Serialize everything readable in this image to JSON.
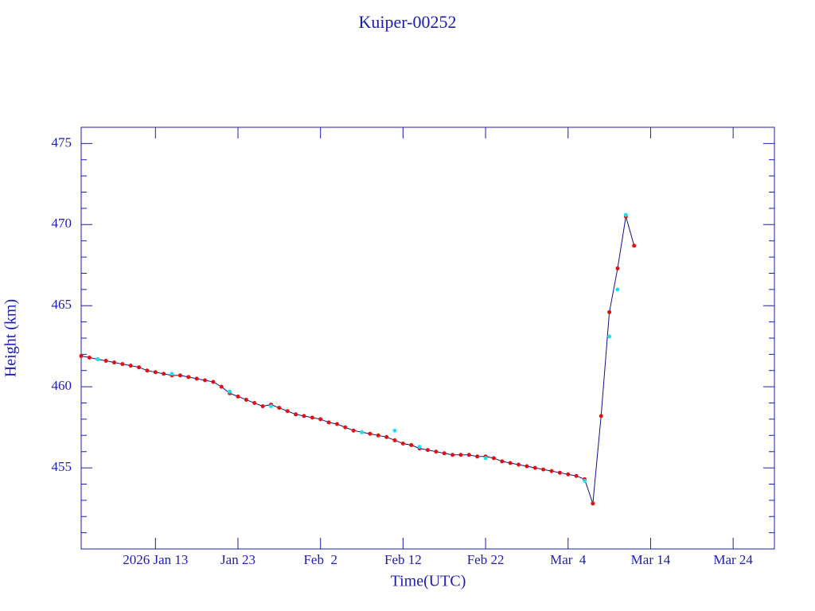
{
  "chart_data": {
    "type": "line",
    "title": "Kuiper-00252",
    "x_label": "Time(UTC)",
    "y_label": "Height (km)",
    "x": [
      "2026-01-04",
      "2026-01-05",
      "2026-01-06",
      "2026-01-07",
      "2026-01-08",
      "2026-01-09",
      "2026-01-10",
      "2026-01-11",
      "2026-01-12",
      "2026-01-13",
      "2026-01-14",
      "2026-01-15",
      "2026-01-16",
      "2026-01-17",
      "2026-01-18",
      "2026-01-19",
      "2026-01-20",
      "2026-01-21",
      "2026-01-22",
      "2026-01-23",
      "2026-01-24",
      "2026-01-25",
      "2026-01-26",
      "2026-01-27",
      "2026-01-28",
      "2026-01-29",
      "2026-01-30",
      "2026-01-31",
      "2026-02-01",
      "2026-02-02",
      "2026-02-03",
      "2026-02-04",
      "2026-02-05",
      "2026-02-06",
      "2026-02-07",
      "2026-02-08",
      "2026-02-09",
      "2026-02-10",
      "2026-02-11",
      "2026-02-12",
      "2026-02-13",
      "2026-02-14",
      "2026-02-15",
      "2026-02-16",
      "2026-02-17",
      "2026-02-18",
      "2026-02-19",
      "2026-02-20",
      "2026-02-21",
      "2026-02-22",
      "2026-02-23",
      "2026-02-24",
      "2026-02-25",
      "2026-02-26",
      "2026-02-27",
      "2026-02-28",
      "2026-03-01",
      "2026-03-02",
      "2026-03-03",
      "2026-03-04",
      "2026-03-05",
      "2026-03-06",
      "2026-03-07",
      "2026-03-08",
      "2026-03-09",
      "2026-03-10",
      "2026-03-11",
      "2026-03-12"
    ],
    "series": [
      {
        "color": "#e01010",
        "line_color": "#10108a",
        "values": [
          461.9,
          461.8,
          461.7,
          461.6,
          461.5,
          461.4,
          461.3,
          461.2,
          461.0,
          460.9,
          460.8,
          460.7,
          460.7,
          460.6,
          460.5,
          460.4,
          460.3,
          460.0,
          459.6,
          459.4,
          459.2,
          459.0,
          458.8,
          458.9,
          458.7,
          458.5,
          458.3,
          458.2,
          458.1,
          458.0,
          457.8,
          457.7,
          457.5,
          457.3,
          457.2,
          457.1,
          457.0,
          456.9,
          456.7,
          456.5,
          456.4,
          456.2,
          456.1,
          456.0,
          455.9,
          455.8,
          455.8,
          455.8,
          455.7,
          455.7,
          455.6,
          455.4,
          455.3,
          455.2,
          455.1,
          455.0,
          454.9,
          454.8,
          454.7,
          454.6,
          454.5,
          454.3,
          452.8,
          458.2,
          464.6,
          467.3,
          470.5,
          468.7
        ]
      },
      {
        "color": "#20e0f0",
        "values": [
          null,
          null,
          461.7,
          null,
          null,
          null,
          null,
          null,
          null,
          null,
          null,
          460.8,
          null,
          null,
          null,
          null,
          null,
          null,
          459.7,
          null,
          null,
          null,
          null,
          458.8,
          null,
          null,
          null,
          null,
          null,
          null,
          null,
          null,
          null,
          null,
          457.2,
          null,
          null,
          null,
          457.3,
          null,
          null,
          456.3,
          null,
          null,
          null,
          null,
          null,
          null,
          null,
          455.6,
          null,
          null,
          null,
          null,
          null,
          null,
          null,
          null,
          null,
          null,
          null,
          454.2,
          null,
          null,
          463.1,
          466.0,
          470.6,
          null
        ]
      }
    ],
    "xlim": [
      "2026-01-04",
      "2026-03-29"
    ],
    "xticks": [
      {
        "value": "2026-01-13",
        "label": "2026 Jan 13"
      },
      {
        "value": "2026-01-23",
        "label": "Jan 23"
      },
      {
        "value": "2026-02-02",
        "label": "Feb  2"
      },
      {
        "value": "2026-02-12",
        "label": "Feb 12"
      },
      {
        "value": "2026-02-22",
        "label": "Feb 22"
      },
      {
        "value": "2026-03-04",
        "label": "Mar  4"
      },
      {
        "value": "2026-03-14",
        "label": "Mar 14"
      },
      {
        "value": "2026-03-24",
        "label": "Mar 24"
      }
    ],
    "ylim": [
      450,
      476
    ],
    "yticks": [
      455,
      460,
      465,
      470,
      475
    ],
    "yminor_ticks": [
      451,
      452,
      453,
      454,
      456,
      457,
      458,
      459,
      461,
      462,
      463,
      464,
      466,
      467,
      468,
      469,
      471,
      472,
      473,
      474
    ]
  }
}
